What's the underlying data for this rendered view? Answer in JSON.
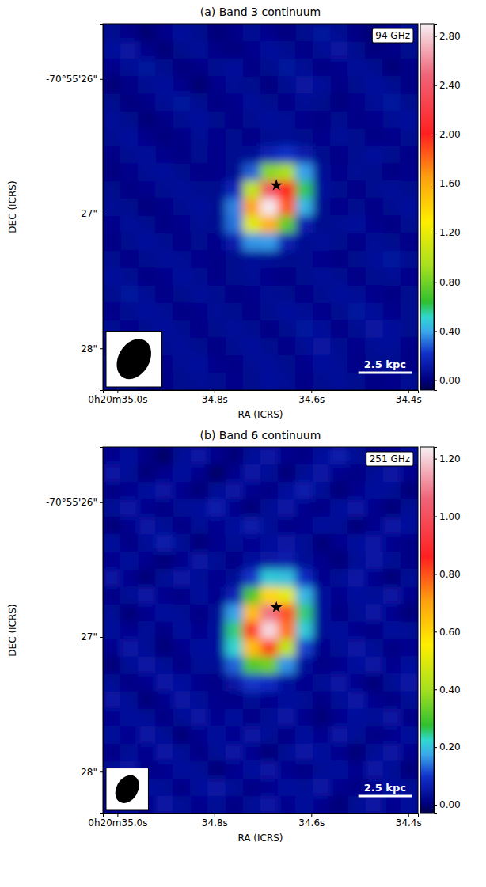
{
  "chart_data": [
    {
      "type": "heatmap",
      "title": "(a) Band 3 continuum",
      "label": "94 GHz",
      "x_label": "RA (ICRS)",
      "y_label": "DEC (ICRS)",
      "xlim": [
        35.03,
        34.38
      ],
      "xticks": [
        {
          "value": 35.0,
          "label": "0h20m35.0s"
        },
        {
          "value": 34.8,
          "label": "34.8s"
        },
        {
          "value": 34.6,
          "label": "34.6s"
        },
        {
          "value": 34.4,
          "label": "34.4s"
        }
      ],
      "ylim": [
        28.31,
        25.59
      ],
      "yticks": [
        {
          "value": 26,
          "label": "-70°55'26\""
        },
        {
          "value": 27,
          "label": "27\""
        },
        {
          "value": 28,
          "label": "28\""
        }
      ],
      "colorbar_lim": [
        -0.08,
        2.9
      ],
      "colorbar_ticks": [
        {
          "value": 0,
          "label": "0.00"
        },
        {
          "value": 0.4,
          "label": "0.40"
        },
        {
          "value": 0.8,
          "label": "0.80"
        },
        {
          "value": 1.2,
          "label": "1.20"
        },
        {
          "value": 1.6,
          "label": "1.60"
        },
        {
          "value": 2.0,
          "label": "2.00"
        },
        {
          "value": 2.4,
          "label": "2.40"
        },
        {
          "value": 2.8,
          "label": "2.80"
        }
      ],
      "marker": "star",
      "marker_position": {
        "x": 34.672,
        "y": 26.79
      },
      "beam": {
        "major": 0.32,
        "minor": 0.23,
        "pa": -30
      },
      "scale_bar": {
        "label": "2.5 kpc",
        "length": 0.11
      },
      "cells": [
        [
          0.05,
          0.02,
          -0.02,
          0.03,
          0.08,
          0.04,
          -0.01,
          0.02,
          0.06,
          0.03,
          0.0,
          0.04,
          0.09,
          0.05,
          0.01,
          -0.02,
          0.03,
          0.06
        ],
        [
          0.08,
          0.1,
          0.03,
          -0.01,
          0.04,
          0.07,
          0.02,
          0.0,
          0.03,
          0.08,
          0.05,
          0.02,
          0.06,
          0.1,
          0.04,
          0.0,
          0.02,
          0.04
        ],
        [
          0.03,
          0.06,
          0.09,
          0.04,
          0.0,
          0.02,
          0.05,
          0.08,
          0.01,
          0.04,
          0.09,
          0.06,
          0.01,
          0.03,
          0.07,
          0.05,
          -0.01,
          0.02
        ],
        [
          -0.01,
          0.02,
          0.05,
          0.08,
          0.03,
          -0.02,
          0.03,
          0.06,
          0.04,
          0.0,
          0.05,
          0.1,
          0.07,
          0.02,
          0.04,
          0.08,
          0.05,
          0.01
        ],
        [
          0.04,
          0.0,
          0.02,
          0.06,
          0.09,
          0.05,
          0.01,
          0.03,
          0.07,
          0.04,
          0.02,
          0.06,
          0.04,
          0.0,
          0.03,
          0.06,
          0.09,
          0.04
        ],
        [
          0.07,
          0.04,
          -0.01,
          0.02,
          0.05,
          0.08,
          0.04,
          0.02,
          0.05,
          0.08,
          0.06,
          0.03,
          0.01,
          0.05,
          0.02,
          0.03,
          0.06,
          0.08
        ],
        [
          0.05,
          0.08,
          0.03,
          0.0,
          0.02,
          0.06,
          0.03,
          0.04,
          0.02,
          0.05,
          0.06,
          0.04,
          0.03,
          0.07,
          0.04,
          0.01,
          0.03,
          0.05
        ],
        [
          0.02,
          0.05,
          0.07,
          0.03,
          0.01,
          0.04,
          0.03,
          0.05,
          0.06,
          0.16,
          0.22,
          0.13,
          0.04,
          0.02,
          0.05,
          0.08,
          0.04,
          0.02
        ],
        [
          0.0,
          0.03,
          0.06,
          0.08,
          0.04,
          0.02,
          0.03,
          0.05,
          0.29,
          0.86,
          0.95,
          0.39,
          0.07,
          0.03,
          0.06,
          0.04,
          0.01,
          0.03
        ],
        [
          0.04,
          0.01,
          0.03,
          0.05,
          0.07,
          0.05,
          0.04,
          0.17,
          1.03,
          2.38,
          1.99,
          0.6,
          0.08,
          0.04,
          0.02,
          0.05,
          0.07,
          0.04
        ],
        [
          0.06,
          0.04,
          0.0,
          0.02,
          0.05,
          0.08,
          0.05,
          0.34,
          1.63,
          2.88,
          1.84,
          0.43,
          0.05,
          0.03,
          0.04,
          0.02,
          0.05,
          0.08
        ],
        [
          0.03,
          0.07,
          0.05,
          0.01,
          0.03,
          0.06,
          0.05,
          0.32,
          1.16,
          1.57,
          0.75,
          0.14,
          0.04,
          0.06,
          0.08,
          0.03,
          0.01,
          0.05
        ],
        [
          0.01,
          0.04,
          0.08,
          0.05,
          0.02,
          0.04,
          0.03,
          0.14,
          0.37,
          0.38,
          0.15,
          0.05,
          0.07,
          0.04,
          0.02,
          0.06,
          0.04,
          0.02
        ],
        [
          0.05,
          0.02,
          0.04,
          0.07,
          0.06,
          0.03,
          0.02,
          0.04,
          0.07,
          0.06,
          0.04,
          0.05,
          0.03,
          0.01,
          0.04,
          0.07,
          0.09,
          0.05
        ],
        [
          0.08,
          0.05,
          0.01,
          0.03,
          0.08,
          0.05,
          0.02,
          0.04,
          0.06,
          0.03,
          0.01,
          0.04,
          0.07,
          0.05,
          0.02,
          0.04,
          0.06,
          0.03
        ],
        [
          0.04,
          0.09,
          0.06,
          0.02,
          0.04,
          0.07,
          0.05,
          0.01,
          0.03,
          0.06,
          0.04,
          0.02,
          0.05,
          0.08,
          0.06,
          0.03,
          0.01,
          0.04
        ],
        [
          0.02,
          0.05,
          0.08,
          0.06,
          0.01,
          0.03,
          0.06,
          0.04,
          0.02,
          0.05,
          0.08,
          0.06,
          0.03,
          0.04,
          0.09,
          0.07,
          0.03,
          0.05
        ],
        [
          0.06,
          0.03,
          0.04,
          0.08,
          0.05,
          0.02,
          0.04,
          0.07,
          0.05,
          0.01,
          0.04,
          0.09,
          0.07,
          0.02,
          0.05,
          0.1,
          0.08,
          0.04
        ],
        [
          0.03,
          0.0,
          0.02,
          0.05,
          0.07,
          0.04,
          0.01,
          0.05,
          0.08,
          0.04,
          0.02,
          0.06,
          0.1,
          0.05,
          0.03,
          0.06,
          0.07,
          0.02
        ],
        [
          0.05,
          0.02,
          -0.01,
          0.03,
          0.06,
          0.08,
          0.03,
          0.02,
          0.06,
          0.07,
          0.04,
          0.03,
          0.08,
          0.06,
          0.02,
          0.04,
          0.05,
          0.01
        ],
        [
          0.07,
          0.04,
          0.02,
          0.01,
          0.04,
          0.06,
          0.05,
          0.03,
          0.04,
          0.08,
          0.06,
          0.02,
          0.05,
          0.07,
          0.04,
          0.01,
          0.03,
          0.06
        ]
      ]
    },
    {
      "type": "heatmap",
      "title": "(b) Band 6 continuum",
      "label": "251 GHz",
      "x_label": "RA (ICRS)",
      "y_label": "DEC (ICRS)",
      "xlim": [
        35.03,
        34.38
      ],
      "xticks": [
        {
          "value": 35.0,
          "label": "0h20m35.0s"
        },
        {
          "value": 34.8,
          "label": "34.8s"
        },
        {
          "value": 34.6,
          "label": "34.6s"
        },
        {
          "value": 34.4,
          "label": "34.4s"
        }
      ],
      "ylim": [
        28.31,
        25.59
      ],
      "yticks": [
        {
          "value": 26,
          "label": "-70°55'26\""
        },
        {
          "value": 27,
          "label": "27\""
        },
        {
          "value": 28,
          "label": "28\""
        }
      ],
      "colorbar_lim": [
        -0.03,
        1.24
      ],
      "colorbar_ticks": [
        {
          "value": 0,
          "label": "0.00"
        },
        {
          "value": 0.2,
          "label": "0.20"
        },
        {
          "value": 0.4,
          "label": "0.40"
        },
        {
          "value": 0.6,
          "label": "0.60"
        },
        {
          "value": 0.8,
          "label": "0.80"
        },
        {
          "value": 1.0,
          "label": "1.00"
        },
        {
          "value": 1.2,
          "label": "1.20"
        }
      ],
      "marker": "star",
      "marker_position": {
        "x": 34.672,
        "y": 26.78
      },
      "beam": {
        "major": 0.22,
        "minor": 0.16,
        "pa": -30
      },
      "scale_bar": {
        "label": "2.5 kpc",
        "length": 0.11
      },
      "cells": [
        [
          0.02,
          0.04,
          0.01,
          -0.01,
          0.03,
          0.05,
          0.02,
          0.0,
          0.03,
          0.05,
          0.02,
          0.01,
          0.04,
          0.06,
          0.03,
          0.0,
          0.02,
          0.04
        ],
        [
          0.05,
          0.03,
          0.0,
          0.02,
          0.04,
          0.02,
          -0.01,
          0.02,
          0.05,
          0.03,
          0.0,
          0.03,
          0.05,
          0.02,
          0.01,
          0.03,
          0.05,
          0.02
        ],
        [
          0.01,
          0.02,
          0.04,
          0.05,
          0.02,
          0.0,
          0.03,
          0.05,
          0.02,
          0.01,
          0.04,
          0.06,
          0.03,
          0.0,
          0.02,
          0.04,
          0.03,
          0.0
        ],
        [
          0.03,
          0.05,
          0.02,
          0.01,
          0.03,
          0.04,
          0.06,
          0.02,
          0.0,
          0.03,
          0.05,
          0.02,
          0.01,
          0.04,
          0.05,
          0.02,
          0.0,
          0.03
        ],
        [
          0.0,
          0.02,
          0.05,
          0.03,
          0.01,
          0.03,
          0.02,
          0.04,
          0.06,
          0.03,
          0.01,
          0.02,
          0.04,
          0.03,
          0.0,
          0.02,
          0.05,
          0.04
        ],
        [
          0.04,
          0.01,
          0.03,
          0.06,
          0.03,
          0.0,
          0.02,
          0.03,
          0.02,
          0.04,
          0.05,
          0.03,
          0.0,
          0.02,
          0.04,
          0.05,
          0.02,
          0.01
        ],
        [
          0.02,
          0.04,
          0.02,
          0.0,
          0.02,
          0.05,
          0.03,
          0.01,
          0.04,
          0.05,
          0.06,
          0.03,
          0.02,
          0.0,
          0.03,
          0.05,
          0.03,
          0.01
        ],
        [
          0.05,
          0.02,
          0.0,
          0.03,
          0.05,
          0.03,
          0.02,
          0.03,
          0.1,
          0.21,
          0.2,
          0.09,
          0.02,
          0.03,
          0.05,
          0.02,
          0.0,
          0.03
        ],
        [
          0.01,
          0.03,
          0.05,
          0.02,
          0.01,
          0.04,
          0.02,
          0.07,
          0.31,
          0.6,
          0.51,
          0.19,
          0.04,
          0.02,
          0.04,
          0.03,
          0.05,
          0.02
        ],
        [
          0.03,
          0.0,
          0.02,
          0.04,
          0.03,
          0.01,
          0.03,
          0.17,
          0.65,
          1.08,
          0.8,
          0.25,
          0.04,
          0.01,
          0.03,
          0.05,
          0.02,
          0.0
        ],
        [
          0.04,
          0.02,
          0.03,
          0.01,
          0.04,
          0.02,
          0.04,
          0.25,
          0.82,
          1.21,
          0.76,
          0.21,
          0.03,
          0.04,
          0.02,
          0.01,
          0.04,
          0.03
        ],
        [
          0.02,
          0.05,
          0.03,
          0.0,
          0.02,
          0.04,
          0.04,
          0.22,
          0.65,
          0.81,
          0.44,
          0.11,
          0.02,
          0.03,
          0.05,
          0.03,
          0.01,
          0.02
        ],
        [
          0.0,
          0.03,
          0.05,
          0.03,
          0.01,
          0.03,
          0.03,
          0.13,
          0.31,
          0.34,
          0.16,
          0.04,
          0.01,
          0.02,
          0.04,
          0.05,
          0.02,
          0.04
        ],
        [
          0.03,
          0.01,
          0.02,
          0.05,
          0.04,
          0.02,
          0.01,
          0.05,
          0.1,
          0.09,
          0.04,
          0.02,
          0.03,
          0.05,
          0.02,
          0.0,
          0.03,
          0.05
        ],
        [
          0.05,
          0.03,
          0.0,
          0.02,
          0.05,
          0.03,
          0.02,
          0.01,
          0.03,
          0.02,
          0.04,
          0.03,
          0.01,
          0.03,
          0.05,
          0.02,
          0.01,
          0.03
        ],
        [
          0.02,
          0.04,
          0.03,
          0.01,
          0.03,
          0.05,
          0.02,
          0.04,
          0.01,
          0.03,
          0.05,
          0.02,
          0.0,
          0.02,
          0.04,
          0.03,
          0.05,
          0.01
        ],
        [
          0.04,
          0.02,
          0.05,
          0.03,
          0.0,
          0.02,
          0.04,
          0.02,
          0.05,
          0.03,
          0.01,
          0.04,
          0.02,
          0.05,
          0.03,
          0.01,
          0.02,
          0.04
        ],
        [
          0.01,
          0.03,
          0.02,
          0.05,
          0.03,
          0.01,
          0.03,
          0.05,
          0.02,
          0.0,
          0.03,
          0.05,
          0.04,
          0.02,
          0.0,
          0.03,
          0.05,
          0.02
        ],
        [
          0.03,
          0.05,
          0.01,
          0.02,
          0.04,
          0.03,
          0.0,
          0.02,
          0.04,
          0.05,
          0.02,
          0.01,
          0.03,
          0.04,
          0.02,
          0.05,
          0.03,
          0.0
        ],
        [
          0.0,
          0.02,
          0.04,
          0.03,
          0.01,
          0.04,
          0.05,
          0.03,
          0.01,
          0.02,
          0.04,
          0.03,
          0.05,
          0.02,
          0.01,
          0.02,
          0.04,
          0.03
        ],
        [
          0.02,
          0.04,
          0.02,
          0.05,
          0.03,
          0.02,
          0.03,
          0.01,
          0.03,
          0.05,
          0.02,
          0.04,
          0.02,
          0.0,
          0.03,
          0.05,
          0.02,
          0.04
        ]
      ]
    }
  ]
}
